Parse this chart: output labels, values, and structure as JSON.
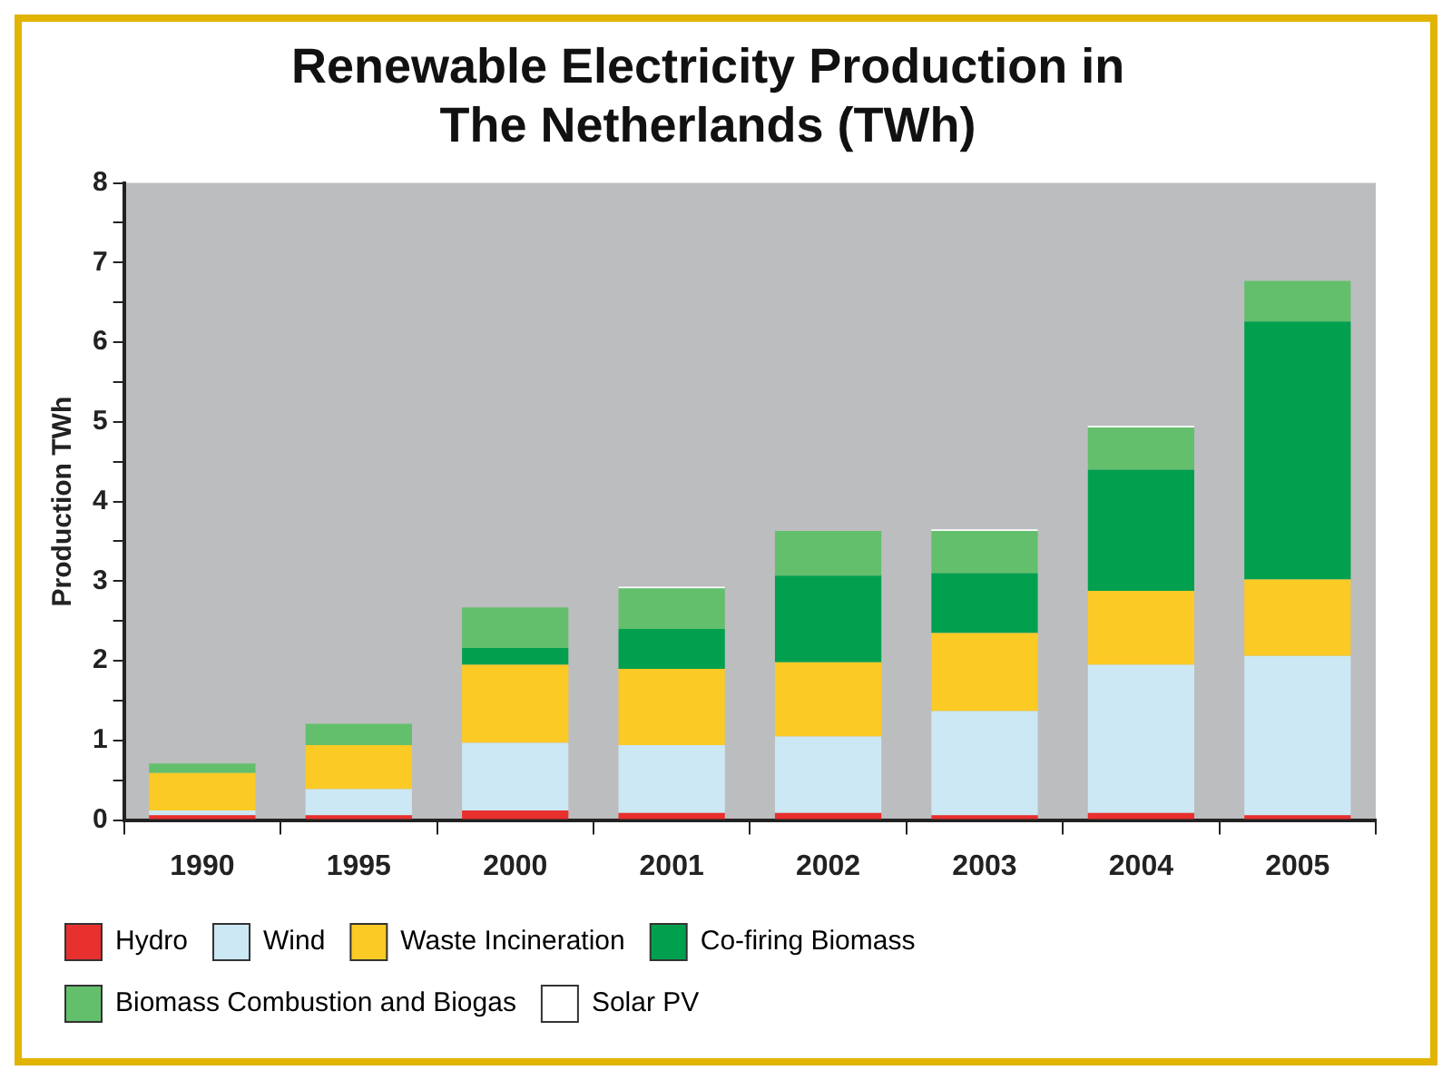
{
  "chart_data": {
    "type": "bar",
    "title": "Renewable Electricity Production in\nThe Netherlands (TWh)",
    "ylabel": "Production TWh",
    "categories": [
      "1990",
      "1995",
      "2000",
      "2001",
      "2002",
      "2003",
      "2004",
      "2005"
    ],
    "stacked": true,
    "ylim": [
      0,
      8
    ],
    "yticks": [
      0,
      {
        "value": 0.5,
        "label": null
      },
      1,
      {
        "value": 1.5,
        "label": null
      },
      2,
      {
        "value": 2.5,
        "label": null
      },
      3,
      {
        "value": 3.5,
        "label": null
      },
      4,
      {
        "value": 4.5,
        "label": null
      },
      5,
      {
        "value": 5.5,
        "label": null
      },
      6,
      {
        "value": 6.5,
        "label": null
      },
      7,
      {
        "value": 7.5,
        "label": null
      },
      8
    ],
    "grid": false,
    "legend": "bottom",
    "series": [
      {
        "name": "Hydro",
        "color": "#e8302f",
        "values": [
          0.06,
          0.06,
          0.12,
          0.09,
          0.09,
          0.06,
          0.09,
          0.06
        ]
      },
      {
        "name": "Wind",
        "color": "#cce8f4",
        "values": [
          0.06,
          0.33,
          0.85,
          0.85,
          0.96,
          1.31,
          1.86,
          2.0
        ]
      },
      {
        "name": "Waste Incineration",
        "color": "#fbca25",
        "values": [
          0.47,
          0.55,
          0.98,
          0.96,
          0.93,
          0.98,
          0.93,
          0.96
        ]
      },
      {
        "name": "Co-firing Biomass",
        "color": "#00a04e",
        "values": [
          0,
          0,
          0.21,
          0.5,
          1.09,
          0.75,
          1.52,
          3.24
        ]
      },
      {
        "name": "Biomass Combustion and Biogas",
        "color": "#63bf6b",
        "values": [
          0.12,
          0.27,
          0.51,
          0.51,
          0.56,
          0.53,
          0.53,
          0.51
        ]
      },
      {
        "name": "Solar PV",
        "color": "#ffffff",
        "values": [
          0,
          0,
          0,
          0.02,
          0,
          0.02,
          0.02,
          0
        ]
      }
    ]
  }
}
